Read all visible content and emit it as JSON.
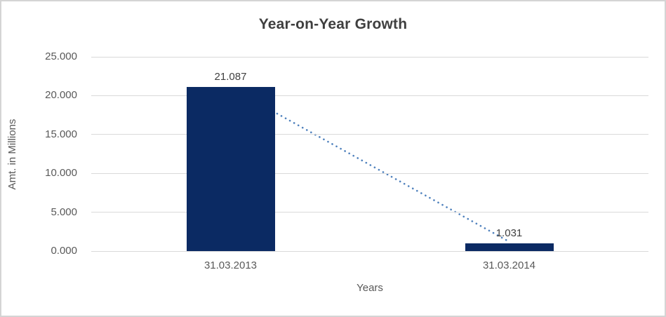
{
  "chart_data": {
    "type": "bar",
    "title": "Year-on-Year Growth",
    "categories": [
      "31.03.2013",
      "31.03.2014"
    ],
    "values": [
      21.087,
      1.031
    ],
    "data_labels": [
      "21.087",
      "1.031"
    ],
    "xlabel": "Years",
    "ylabel": "Amt. in Millions",
    "ylim": [
      0,
      25
    ],
    "ytick_values": [
      0,
      5,
      10,
      15,
      20,
      25
    ],
    "ytick_labels": [
      "0.000",
      "5.000",
      "10.000",
      "15.000",
      "20.000",
      "25.000"
    ],
    "grid": true,
    "legend": "none",
    "trendline": {
      "style": "dotted",
      "from_value": 21.087,
      "to_value": 1.031
    },
    "colors": {
      "bar": "#0b2a63",
      "trendline": "#4f81bd",
      "gridline": "#d9d9d9",
      "title_text": "#3f3f3f",
      "axis_text": "#595959",
      "data_label_text": "#404040",
      "frame_border": "#d4d4d4",
      "background": "#ffffff"
    }
  }
}
